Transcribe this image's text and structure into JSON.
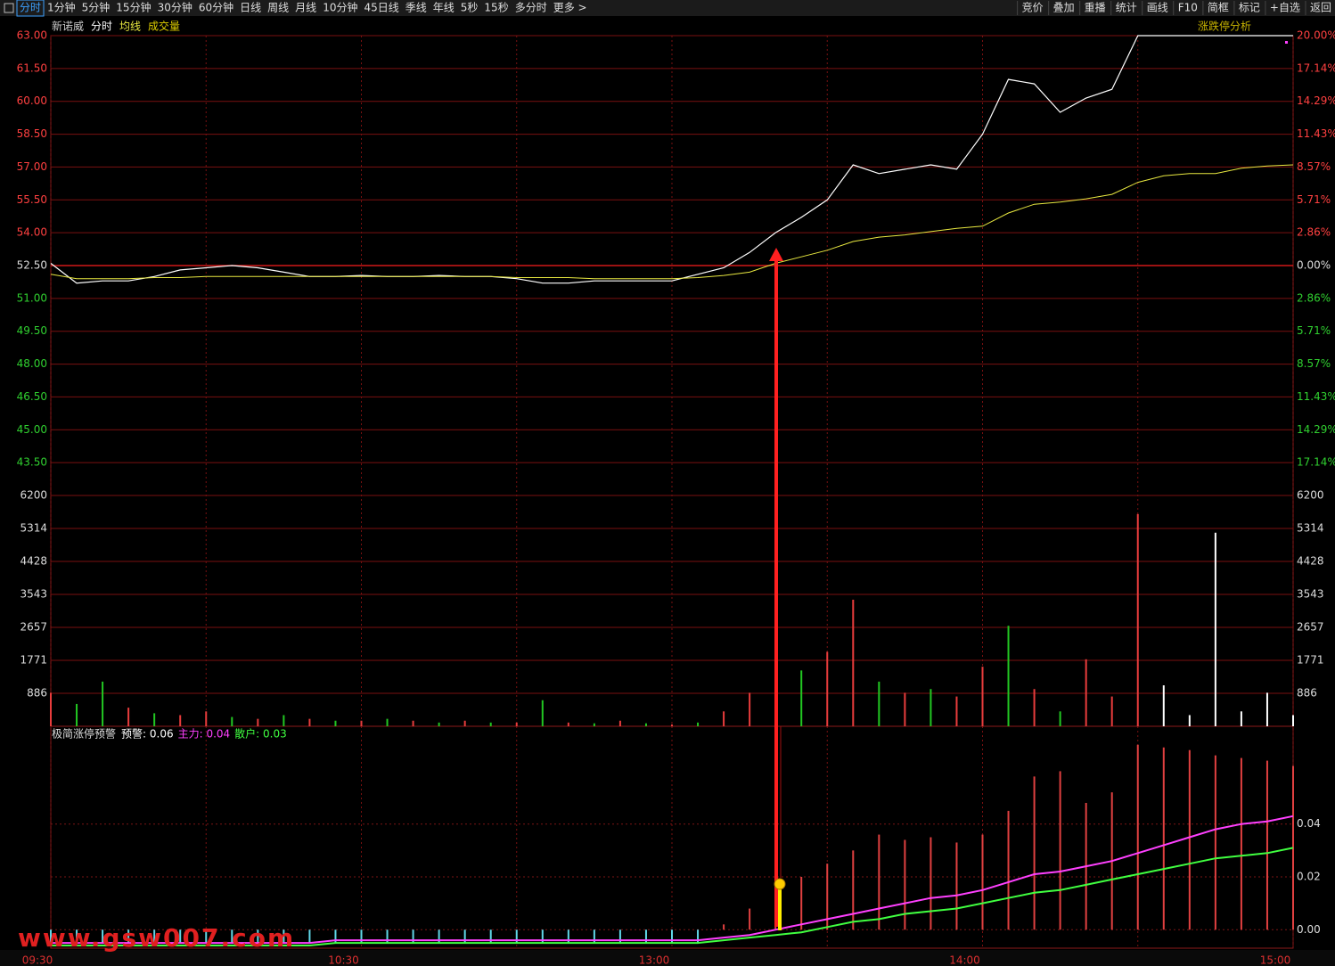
{
  "toolbar": {
    "tabs": [
      "分时",
      "1分钟",
      "5分钟",
      "15分钟",
      "30分钟",
      "60分钟",
      "日线",
      "周线",
      "月线",
      "10分钟",
      "45日线",
      "季线",
      "年线",
      "5秒",
      "15秒",
      "多分时",
      "更多 >"
    ],
    "buttons": [
      "竞价",
      "叠加",
      "重播",
      "统计",
      "画线",
      "F10",
      "简框",
      "标记",
      "+自选",
      "返回"
    ]
  },
  "watermark": "www.gsw007.com",
  "chart_data": [
    {
      "type": "line",
      "title": "新诺威",
      "annotation": "涨跌停分析",
      "x": [
        0,
        5,
        10,
        15,
        20,
        25,
        30,
        35,
        40,
        45,
        50,
        55,
        60,
        65,
        70,
        75,
        80,
        85,
        90,
        95,
        100,
        105,
        110,
        115,
        120,
        125,
        130,
        135,
        140,
        145,
        150,
        155,
        160,
        165,
        170,
        175,
        180,
        185,
        190,
        195,
        200,
        205,
        210,
        215,
        220,
        225,
        230,
        235,
        240
      ],
      "xlim": [
        0,
        240
      ],
      "ylim": [
        42,
        63
      ],
      "yticks": [
        {
          "value": 63,
          "label": "63.00"
        },
        {
          "value": 61.5,
          "label": "61.50"
        },
        {
          "value": 60,
          "label": "60.00"
        },
        {
          "value": 58.5,
          "label": "58.50"
        },
        {
          "value": 57,
          "label": "57.00"
        },
        {
          "value": 55.5,
          "label": "55.50"
        },
        {
          "value": 54,
          "label": "54.00"
        },
        {
          "value": 52.5,
          "label": "52.50"
        },
        {
          "value": 51,
          "label": "51.00"
        },
        {
          "value": 49.5,
          "label": "49.50"
        },
        {
          "value": 48,
          "label": "48.00"
        },
        {
          "value": 46.5,
          "label": "46.50"
        },
        {
          "value": 45,
          "label": "45.00"
        },
        {
          "value": 43.5,
          "label": "43.50"
        }
      ],
      "y2lim": [
        -20,
        20
      ],
      "y2ticks": [
        {
          "value": 20,
          "label": "20.00%"
        },
        {
          "value": 17.14,
          "label": "17.14%"
        },
        {
          "value": 14.29,
          "label": "14.29%"
        },
        {
          "value": 11.43,
          "label": "11.43%"
        },
        {
          "value": 8.57,
          "label": "8.57%"
        },
        {
          "value": 5.71,
          "label": "5.71%"
        },
        {
          "value": 2.86,
          "label": "2.86%"
        },
        {
          "value": 0,
          "label": "0.00%"
        },
        {
          "value": -2.86,
          "label": "2.86%"
        },
        {
          "value": -5.71,
          "label": "5.71%"
        },
        {
          "value": -8.57,
          "label": "8.57%"
        },
        {
          "value": -11.43,
          "label": "11.43%"
        },
        {
          "value": -14.29,
          "label": "14.29%"
        },
        {
          "value": -17.14,
          "label": "17.14%"
        }
      ],
      "series": [
        {
          "name": "分时",
          "color": "#ffffff",
          "values": [
            52.6,
            51.7,
            51.8,
            51.8,
            52.0,
            52.3,
            52.4,
            52.5,
            52.4,
            52.2,
            52.0,
            52.0,
            52.05,
            52.0,
            52.0,
            52.05,
            52.0,
            52.0,
            51.9,
            51.7,
            51.7,
            51.8,
            51.8,
            51.8,
            51.8,
            52.1,
            52.4,
            53.1,
            54.0,
            54.7,
            55.5,
            57.1,
            56.7,
            56.9,
            57.1,
            56.9,
            58.5,
            61.0,
            60.8,
            59.5,
            60.15,
            60.55,
            63.0,
            63.0,
            63.0,
            63.0,
            63.0,
            63.0,
            63.0
          ]
        },
        {
          "name": "均线",
          "color": "#e8e840",
          "values": [
            52.1,
            51.9,
            51.9,
            51.9,
            51.95,
            51.95,
            52.0,
            52.0,
            52.0,
            52.0,
            52.0,
            52.0,
            52.0,
            52.0,
            52.0,
            52.0,
            52.0,
            52.0,
            51.95,
            51.95,
            51.95,
            51.9,
            51.9,
            51.9,
            51.9,
            51.95,
            52.05,
            52.2,
            52.6,
            52.9,
            53.2,
            53.6,
            53.8,
            53.9,
            54.05,
            54.2,
            54.3,
            54.9,
            55.3,
            55.4,
            55.55,
            55.75,
            56.3,
            56.6,
            56.7,
            56.7,
            56.95,
            57.05,
            57.1
          ]
        }
      ]
    },
    {
      "type": "bar",
      "title": "成交量",
      "x": [
        0,
        5,
        10,
        15,
        20,
        25,
        30,
        35,
        40,
        45,
        50,
        55,
        60,
        65,
        70,
        75,
        80,
        85,
        90,
        95,
        100,
        105,
        110,
        115,
        120,
        125,
        130,
        135,
        140,
        145,
        150,
        155,
        160,
        165,
        170,
        175,
        180,
        185,
        190,
        195,
        200,
        205,
        210,
        215,
        220,
        225,
        230,
        235,
        240
      ],
      "xlim": [
        0,
        240
      ],
      "ylim": [
        0,
        6200
      ],
      "yticks": [
        886,
        1771,
        2657,
        3543,
        4428,
        5314,
        6200
      ],
      "values": [
        900,
        600,
        1200,
        500,
        350,
        300,
        400,
        250,
        200,
        300,
        200,
        150,
        150,
        200,
        150,
        100,
        150,
        100,
        100,
        700,
        100,
        80,
        150,
        80,
        50,
        100,
        400,
        900,
        2900,
        1500,
        2000,
        3400,
        1200,
        900,
        1000,
        800,
        1600,
        2700,
        1000,
        400,
        1800,
        800,
        5700,
        1100,
        300,
        5200,
        400,
        900,
        300
      ],
      "colors": [
        "#e83c3c",
        "#22c722",
        "#22c722",
        "#e83c3c",
        "#22c722",
        "#e83c3c",
        "#e83c3c",
        "#22c722",
        "#e83c3c",
        "#22c722",
        "#e83c3c",
        "#22c722",
        "#e83c3c",
        "#22c722",
        "#e83c3c",
        "#22c722",
        "#e83c3c",
        "#22c722",
        "#e83c3c",
        "#22c722",
        "#e83c3c",
        "#22c722",
        "#e83c3c",
        "#22c722",
        "#e83c3c",
        "#22c722",
        "#e83c3c",
        "#e83c3c",
        "#e83c3c",
        "#22c722",
        "#e83c3c",
        "#e83c3c",
        "#22c722",
        "#e83c3c",
        "#22c722",
        "#e83c3c",
        "#e83c3c",
        "#22c722",
        "#e83c3c",
        "#22c722",
        "#e83c3c",
        "#e83c3c",
        "#e83c3c",
        "#ffffff",
        "#ffffff",
        "#ffffff",
        "#ffffff",
        "#ffffff",
        "#ffffff"
      ]
    },
    {
      "type": "combo",
      "title": "极简涨停预警",
      "readout": [
        {
          "text": "预警: 0.06",
          "color": "#ffffff"
        },
        {
          "text": "主力: 0.04",
          "color": "#ff40ff"
        },
        {
          "text": "散户: 0.03",
          "color": "#40ff40"
        }
      ],
      "x": [
        0,
        5,
        10,
        15,
        20,
        25,
        30,
        35,
        40,
        45,
        50,
        55,
        60,
        65,
        70,
        75,
        80,
        85,
        90,
        95,
        100,
        105,
        110,
        115,
        120,
        125,
        130,
        135,
        140,
        145,
        150,
        155,
        160,
        165,
        170,
        175,
        180,
        185,
        190,
        195,
        200,
        205,
        210,
        215,
        220,
        225,
        230,
        235,
        240
      ],
      "xlim": [
        0,
        240
      ],
      "xticks": [
        {
          "value": 0,
          "label": "09:30"
        },
        {
          "value": 60,
          "label": "10:30"
        },
        {
          "value": 120,
          "label": "13:00"
        },
        {
          "value": 180,
          "label": "14:00"
        },
        {
          "value": 240,
          "label": "15:00"
        }
      ],
      "minor_xticks": [
        30,
        90,
        150,
        210
      ],
      "ylim": [
        -0.007,
        0.076
      ],
      "yticks": [
        {
          "value": 0,
          "label": "0.00"
        },
        0.02,
        0.04
      ],
      "series": [
        {
          "type": "bar",
          "color": "#e04040",
          "negative_color": "#60d8e8",
          "values": [
            -0.005,
            -0.005,
            -0.005,
            -0.005,
            -0.005,
            -0.005,
            -0.005,
            -0.005,
            -0.005,
            -0.005,
            -0.005,
            -0.005,
            -0.005,
            -0.005,
            -0.005,
            -0.005,
            -0.005,
            -0.005,
            -0.005,
            -0.005,
            -0.005,
            -0.005,
            -0.005,
            -0.005,
            -0.005,
            -0.005,
            0.002,
            0.008,
            0.015,
            0.02,
            0.025,
            0.03,
            0.036,
            0.034,
            0.035,
            0.033,
            0.036,
            0.045,
            0.058,
            0.06,
            0.048,
            0.052,
            0.07,
            0.069,
            0.068,
            0.066,
            0.065,
            0.064,
            0.062
          ]
        },
        {
          "type": "line",
          "color": "#ff40ff",
          "values": [
            -0.005,
            -0.005,
            -0.005,
            -0.005,
            -0.005,
            -0.005,
            -0.005,
            -0.005,
            -0.005,
            -0.005,
            -0.005,
            -0.004,
            -0.004,
            -0.004,
            -0.004,
            -0.004,
            -0.004,
            -0.004,
            -0.004,
            -0.004,
            -0.004,
            -0.004,
            -0.004,
            -0.004,
            -0.004,
            -0.004,
            -0.003,
            -0.002,
            0.0,
            0.002,
            0.004,
            0.006,
            0.008,
            0.01,
            0.012,
            0.013,
            0.015,
            0.018,
            0.021,
            0.022,
            0.024,
            0.026,
            0.029,
            0.032,
            0.035,
            0.038,
            0.04,
            0.041,
            0.043
          ]
        },
        {
          "type": "line",
          "color": "#40ff40",
          "values": [
            -0.006,
            -0.006,
            -0.006,
            -0.006,
            -0.006,
            -0.006,
            -0.006,
            -0.006,
            -0.006,
            -0.006,
            -0.006,
            -0.005,
            -0.005,
            -0.005,
            -0.005,
            -0.005,
            -0.005,
            -0.005,
            -0.005,
            -0.005,
            -0.005,
            -0.005,
            -0.005,
            -0.005,
            -0.005,
            -0.005,
            -0.004,
            -0.003,
            -0.002,
            -0.001,
            0.001,
            0.003,
            0.004,
            0.006,
            0.007,
            0.008,
            0.01,
            0.012,
            0.014,
            0.015,
            0.017,
            0.019,
            0.021,
            0.023,
            0.025,
            0.027,
            0.028,
            0.029,
            0.031
          ]
        }
      ]
    }
  ]
}
